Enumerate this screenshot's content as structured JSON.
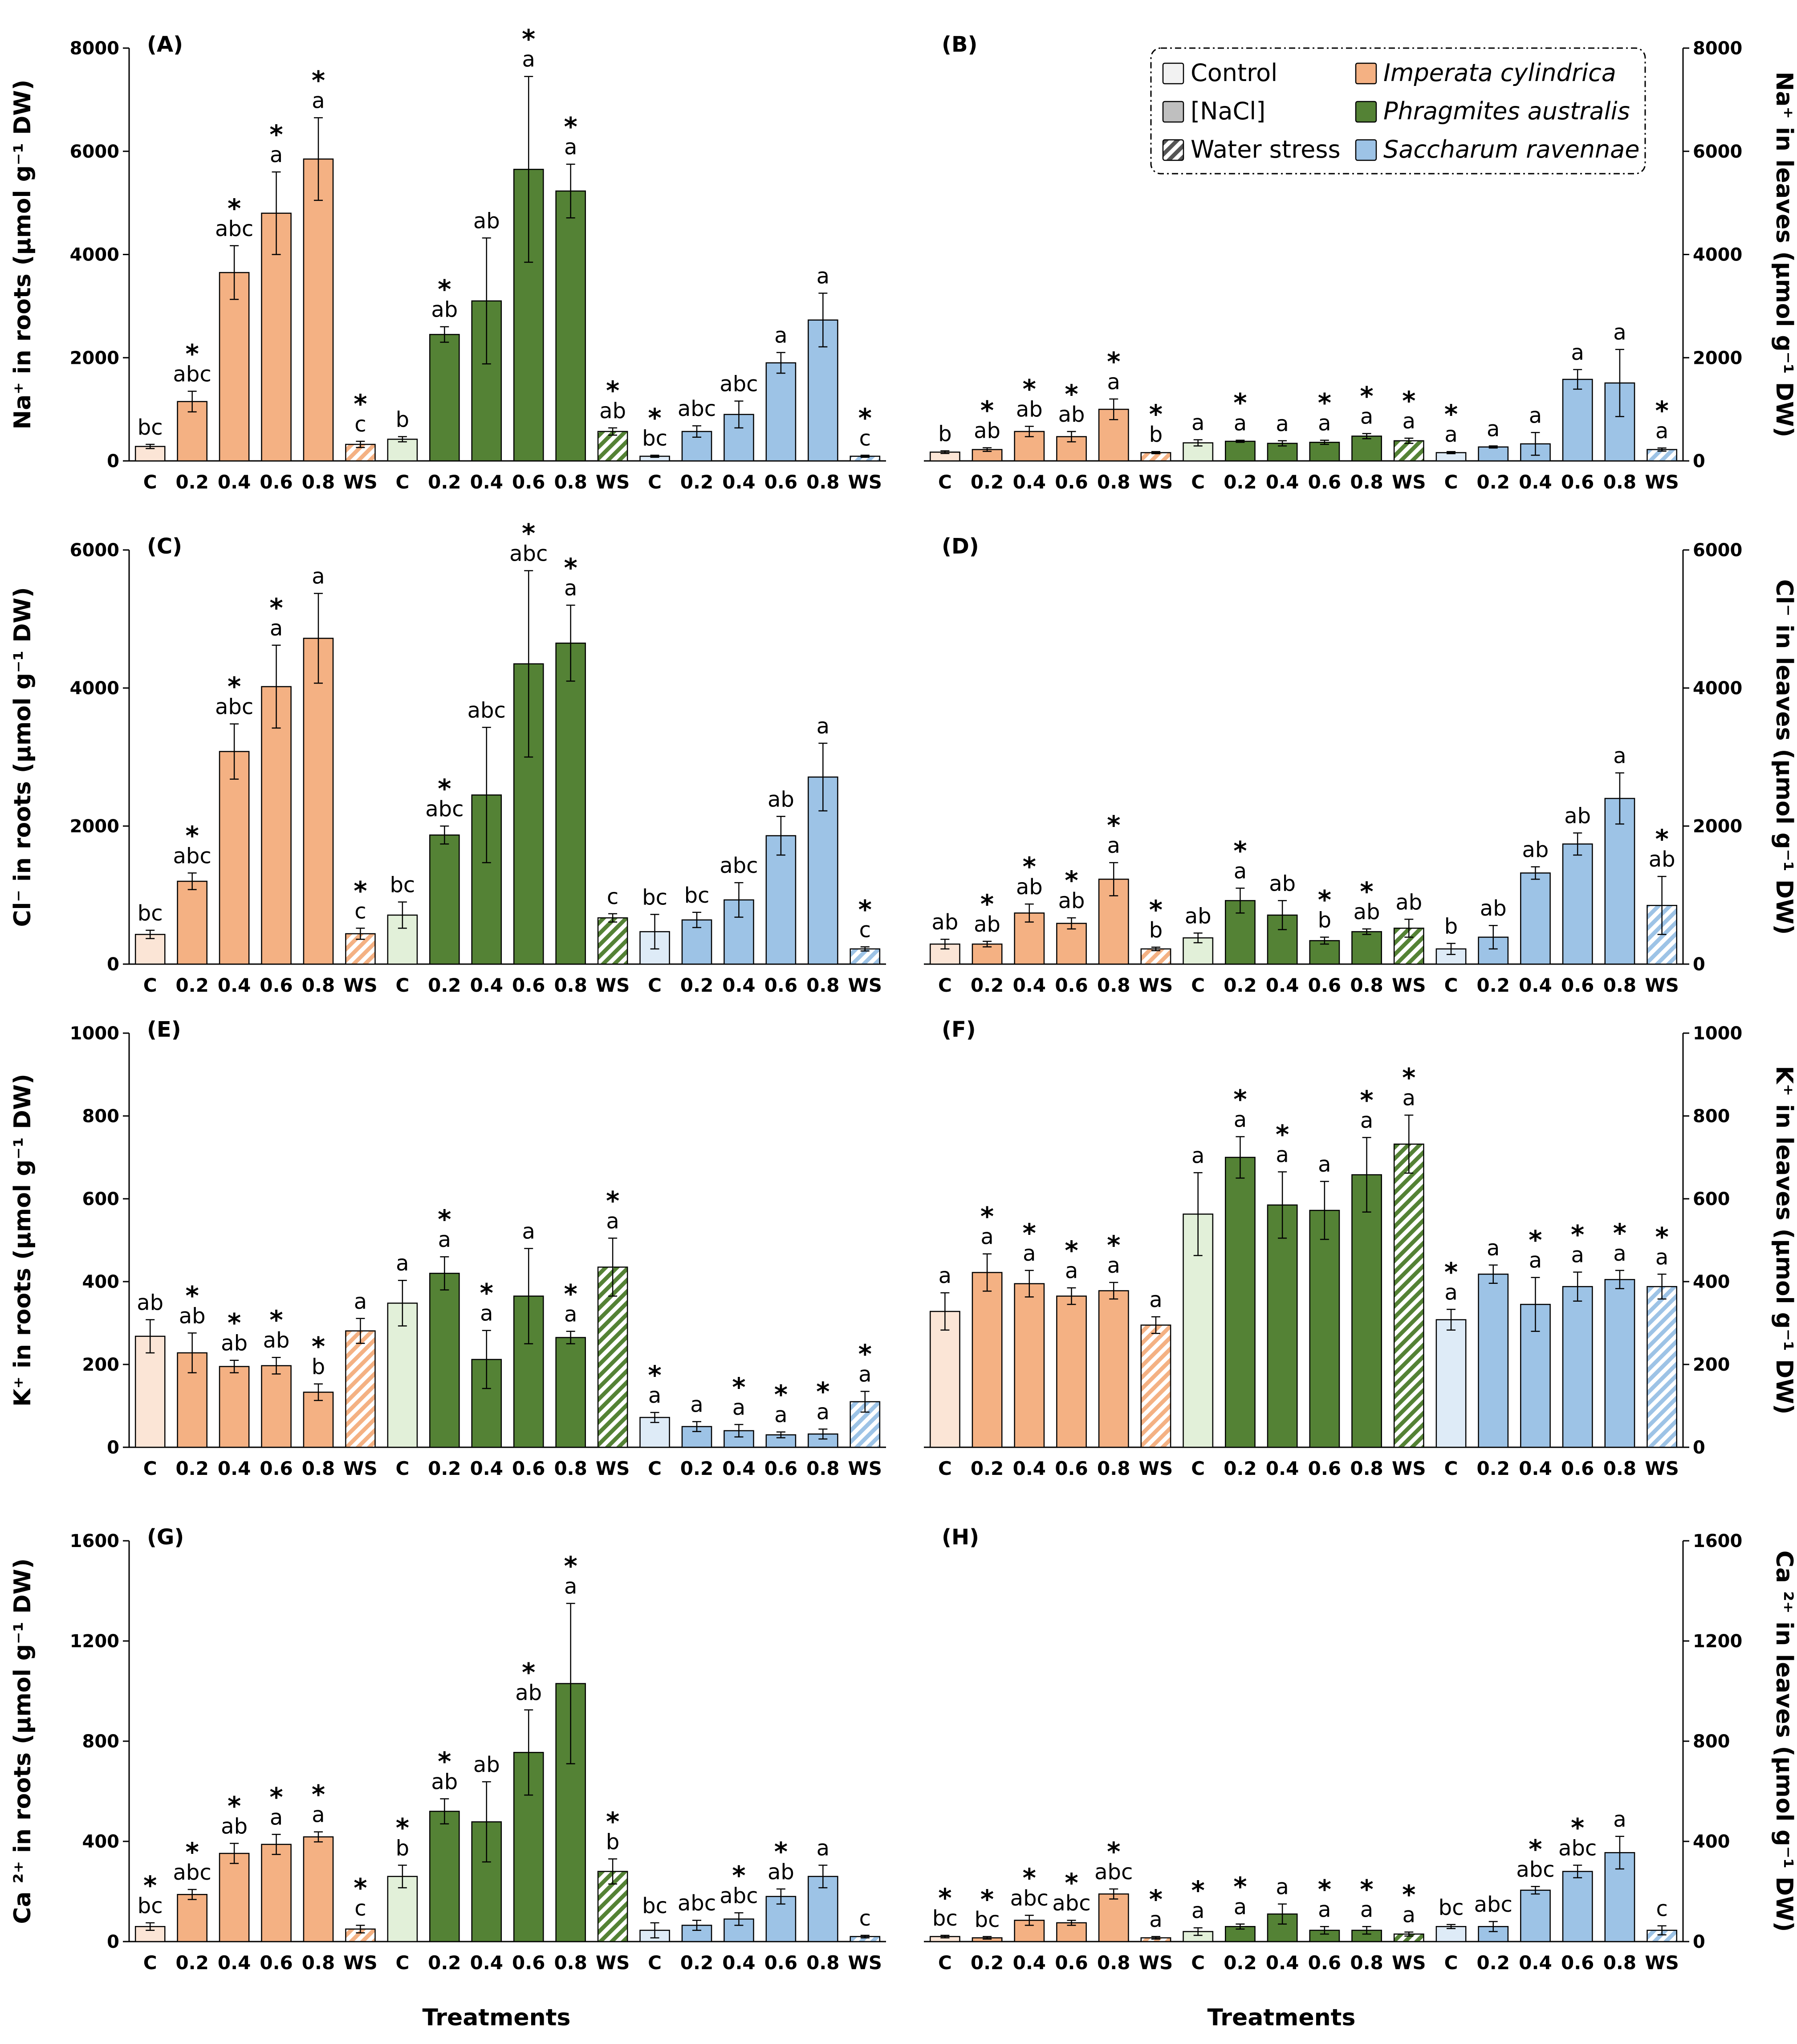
{
  "chart_data": {
    "type": "bar",
    "categories": [
      "C",
      "0.2",
      "0.4",
      "0.6",
      "0.8",
      "WS",
      "C",
      "0.2",
      "0.4",
      "0.6",
      "0.8",
      "WS",
      "C",
      "0.2",
      "0.4",
      "0.6",
      "0.8",
      "WS"
    ],
    "species": [
      "Imperata cylindrica",
      "Phragmites australis",
      "Saccharum ravennae"
    ],
    "legend": [
      {
        "label": "Control",
        "kind": "control",
        "italic": false
      },
      {
        "label": "[NaCl]",
        "kind": "nacl",
        "italic": false
      },
      {
        "label": "Water stress",
        "kind": "ws",
        "italic": false
      },
      {
        "label": "Imperata cylindrica",
        "kind": "imperata",
        "italic": true
      },
      {
        "label": "Phragmites australis",
        "kind": "phragmites",
        "italic": true
      },
      {
        "label": "Saccharum ravennae",
        "kind": "saccharum",
        "italic": true
      }
    ],
    "colors": {
      "imperata": {
        "main": "#F4B183",
        "light": "#FBE5D6"
      },
      "phragmites": {
        "main": "#548235",
        "light": "#E2F0D9"
      },
      "saccharum": {
        "main": "#9DC3E6",
        "light": "#DEEBF7"
      },
      "nacl": "#BFBFBF",
      "control": "#F2F2F2"
    },
    "xlabel": "Treatments",
    "panels": [
      {
        "id": "A",
        "label": "(A)",
        "ylabel": "Na⁺ in roots (µmol g⁻¹ DW)",
        "yaxis": "left",
        "ylim": [
          0,
          8000
        ],
        "yticks": [
          0,
          2000,
          4000,
          6000,
          8000
        ],
        "values": [
          280,
          1150,
          3650,
          4800,
          5850,
          320,
          420,
          2450,
          3100,
          5650,
          5230,
          570,
          90,
          570,
          900,
          1900,
          2730,
          90
        ],
        "errors": [
          40,
          200,
          520,
          800,
          800,
          60,
          50,
          150,
          1220,
          1800,
          520,
          70,
          20,
          110,
          260,
          200,
          520,
          20
        ],
        "letters": [
          "bc",
          "abc",
          "abc",
          "a",
          "a",
          "c",
          "b",
          "ab",
          "ab",
          "a",
          "a",
          "ab",
          "bc",
          "abc",
          "abc",
          "a",
          "a",
          "c"
        ],
        "stars": [
          false,
          true,
          true,
          true,
          true,
          true,
          false,
          true,
          false,
          true,
          true,
          true,
          true,
          false,
          false,
          false,
          false,
          true
        ]
      },
      {
        "id": "B",
        "label": "(B)",
        "ylabel": "Na⁺ in leaves (µmol g⁻¹ DW)",
        "yaxis": "right",
        "ylim": [
          0,
          8000
        ],
        "yticks": [
          0,
          2000,
          4000,
          6000,
          8000
        ],
        "values": [
          170,
          220,
          570,
          470,
          1000,
          160,
          350,
          380,
          340,
          360,
          480,
          390,
          160,
          270,
          330,
          1580,
          1510,
          220
        ],
        "errors": [
          25,
          35,
          100,
          100,
          200,
          20,
          60,
          20,
          50,
          40,
          50,
          50,
          20,
          20,
          220,
          190,
          650,
          30
        ],
        "letters": [
          "b",
          "ab",
          "ab",
          "ab",
          "a",
          "b",
          "a",
          "a",
          "a",
          "a",
          "a",
          "a",
          "a",
          "a",
          "a",
          "a",
          "a",
          "a"
        ],
        "stars": [
          false,
          true,
          true,
          true,
          true,
          true,
          false,
          true,
          false,
          true,
          true,
          true,
          true,
          false,
          false,
          false,
          false,
          true
        ]
      },
      {
        "id": "C",
        "label": "(C)",
        "ylabel": "Cl⁻ in roots (µmol g⁻¹ DW)",
        "yaxis": "left",
        "ylim": [
          0,
          6000
        ],
        "yticks": [
          0,
          2000,
          4000,
          6000
        ],
        "values": [
          430,
          1200,
          3080,
          4020,
          4720,
          440,
          710,
          1870,
          2450,
          4350,
          4650,
          670,
          470,
          640,
          930,
          1860,
          2710,
          220
        ],
        "errors": [
          60,
          120,
          400,
          600,
          650,
          80,
          190,
          130,
          980,
          1350,
          550,
          60,
          250,
          110,
          250,
          280,
          490,
          30
        ],
        "letters": [
          "bc",
          "abc",
          "abc",
          "a",
          "a",
          "c",
          "bc",
          "abc",
          "abc",
          "abc",
          "a",
          "c",
          "bc",
          "bc",
          "abc",
          "ab",
          "a",
          "c"
        ],
        "stars": [
          false,
          true,
          true,
          true,
          false,
          true,
          false,
          true,
          false,
          true,
          true,
          false,
          false,
          false,
          false,
          false,
          false,
          true
        ]
      },
      {
        "id": "D",
        "label": "(D)",
        "ylabel": "Cl⁻ in leaves (µmol g⁻¹ DW)",
        "yaxis": "right",
        "ylim": [
          0,
          6000
        ],
        "yticks": [
          0,
          2000,
          4000,
          6000
        ],
        "values": [
          290,
          290,
          740,
          590,
          1230,
          220,
          380,
          920,
          710,
          340,
          470,
          520,
          220,
          390,
          1320,
          1740,
          2400,
          850
        ],
        "errors": [
          70,
          40,
          130,
          80,
          240,
          25,
          70,
          180,
          210,
          50,
          40,
          130,
          80,
          170,
          90,
          160,
          370,
          420
        ],
        "letters": [
          "ab",
          "ab",
          "ab",
          "ab",
          "a",
          "b",
          "ab",
          "a",
          "ab",
          "b",
          "ab",
          "ab",
          "b",
          "ab",
          "ab",
          "ab",
          "a",
          "ab"
        ],
        "stars": [
          false,
          true,
          true,
          true,
          true,
          true,
          false,
          true,
          false,
          true,
          true,
          false,
          false,
          false,
          false,
          false,
          false,
          true
        ]
      },
      {
        "id": "E",
        "label": "(E)",
        "ylabel": "K⁺ in roots (µmol g⁻¹ DW)",
        "yaxis": "left",
        "ylim": [
          0,
          1000
        ],
        "yticks": [
          0,
          200,
          400,
          600,
          800,
          1000
        ],
        "values": [
          268,
          228,
          195,
          197,
          133,
          281,
          348,
          420,
          212,
          365,
          265,
          435,
          72,
          50,
          40,
          30,
          32,
          110
        ],
        "errors": [
          40,
          48,
          15,
          20,
          20,
          30,
          55,
          40,
          70,
          115,
          15,
          70,
          12,
          12,
          15,
          7,
          12,
          25
        ],
        "letters": [
          "ab",
          "ab",
          "ab",
          "ab",
          "b",
          "a",
          "a",
          "a",
          "a",
          "a",
          "a",
          "a",
          "a",
          "a",
          "a",
          "a",
          "a",
          "a"
        ],
        "stars": [
          false,
          true,
          true,
          true,
          true,
          false,
          false,
          true,
          true,
          false,
          true,
          true,
          true,
          false,
          true,
          true,
          true,
          true
        ]
      },
      {
        "id": "F",
        "label": "(F)",
        "ylabel": "K⁺ in leaves (µmol g⁻¹ DW)",
        "yaxis": "right",
        "ylim": [
          0,
          1000
        ],
        "yticks": [
          0,
          200,
          400,
          600,
          800,
          1000
        ],
        "values": [
          328,
          422,
          395,
          365,
          378,
          295,
          563,
          700,
          585,
          572,
          658,
          732
        ],
        "valuesTail": [
          308,
          418,
          345,
          388,
          405,
          388
        ],
        "letters": [
          "a",
          "a",
          "a",
          "a",
          "a",
          "a",
          "a",
          "a",
          "a",
          "a",
          "a",
          "a",
          "a",
          "a",
          "a",
          "a",
          "a",
          "a"
        ],
        "errors": [
          45,
          45,
          32,
          20,
          20,
          20,
          100,
          50,
          80,
          70,
          90,
          70,
          25,
          22,
          65,
          35,
          22,
          30
        ],
        "stars": [
          false,
          true,
          true,
          true,
          true,
          false,
          false,
          true,
          true,
          false,
          true,
          true,
          true,
          false,
          true,
          true,
          true,
          true
        ]
      },
      {
        "id": "G",
        "label": "(G)",
        "ylabel": "Ca ²⁺ in roots (µmol g⁻¹ DW)",
        "yaxis": "left",
        "ylim": [
          0,
          1600
        ],
        "yticks": [
          0,
          400,
          800,
          1200,
          1600
        ],
        "values": [
          60,
          188,
          352,
          388,
          418,
          50,
          260,
          520,
          478,
          755,
          1030,
          280,
          45,
          65,
          90,
          180,
          260,
          20
        ],
        "errors": [
          15,
          20,
          40,
          40,
          20,
          15,
          45,
          50,
          160,
          170,
          320,
          50,
          30,
          20,
          25,
          30,
          45,
          5
        ],
        "letters": [
          "bc",
          "abc",
          "ab",
          "a",
          "a",
          "c",
          "b",
          "ab",
          "ab",
          "ab",
          "a",
          "b",
          "bc",
          "abc",
          "abc",
          "ab",
          "a",
          "c"
        ],
        "stars": [
          true,
          true,
          true,
          true,
          true,
          true,
          true,
          true,
          false,
          true,
          true,
          true,
          false,
          false,
          true,
          true,
          false,
          false
        ]
      },
      {
        "id": "H",
        "label": "(H)",
        "ylabel": "Ca ²⁺ in leaves (µmol g⁻¹ DW)",
        "yaxis": "right",
        "ylim": [
          0,
          1600
        ],
        "yticks": [
          0,
          400,
          800,
          1200,
          1600
        ],
        "values": [
          20,
          15,
          85,
          75,
          190,
          15,
          40,
          60,
          110,
          45,
          45,
          30,
          60,
          60,
          205,
          280,
          355,
          45
        ],
        "errors": [
          5,
          5,
          20,
          10,
          20,
          5,
          15,
          10,
          40,
          15,
          15,
          8,
          8,
          20,
          15,
          25,
          65,
          18
        ],
        "letters": [
          "bc",
          "bc",
          "abc",
          "abc",
          "abc",
          "a",
          "a",
          "a",
          "a",
          "a",
          "a",
          "a",
          "bc",
          "abc",
          "abc",
          "abc",
          "a",
          "c"
        ],
        "stars": [
          true,
          true,
          true,
          true,
          true,
          true,
          true,
          true,
          false,
          true,
          true,
          true,
          false,
          false,
          true,
          true,
          false,
          false
        ]
      }
    ]
  }
}
